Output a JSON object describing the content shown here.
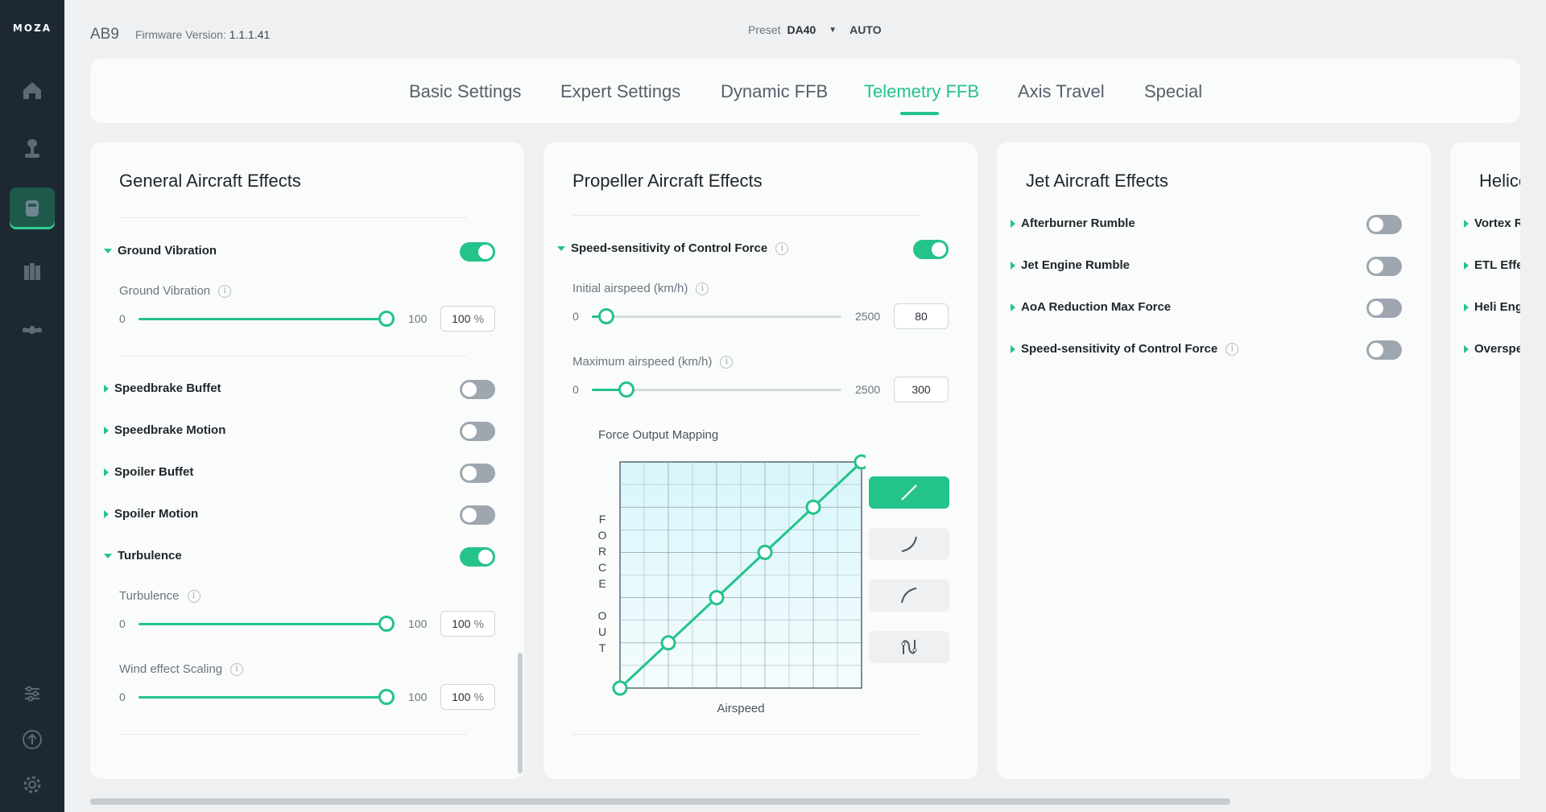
{
  "app": {
    "logo": "MOZA"
  },
  "header": {
    "model": "AB9",
    "firmware_label": "Firmware Version:",
    "firmware_version": "1.1.1.41",
    "preset_label": "Preset",
    "preset_value": "DA40",
    "auto_label": "AUTO"
  },
  "sidebar": {
    "items": [
      {
        "name": "home-icon",
        "active": false
      },
      {
        "name": "joystick-icon",
        "active": false
      },
      {
        "name": "base-device-icon",
        "active": true
      },
      {
        "name": "pedals-icon",
        "active": false
      },
      {
        "name": "drone-icon",
        "active": false
      }
    ],
    "bottom": [
      "sliders-icon",
      "upload-icon",
      "gear-icon"
    ]
  },
  "tabs": [
    {
      "label": "Basic Settings",
      "active": false
    },
    {
      "label": "Expert Settings",
      "active": false
    },
    {
      "label": "Dynamic FFB",
      "active": false
    },
    {
      "label": "Telemetry FFB",
      "active": true
    },
    {
      "label": "Axis Travel",
      "active": false
    },
    {
      "label": "Special",
      "active": false
    }
  ],
  "general": {
    "title": "General Aircraft Effects",
    "ground_vibration": {
      "label": "Ground Vibration",
      "enabled": true
    },
    "ground_vibration_slider": {
      "label": "Ground Vibration",
      "min": "0",
      "max": "100",
      "value": "100",
      "unit": "%"
    },
    "speedbrake_buffet": {
      "label": "Speedbrake Buffet",
      "enabled": false
    },
    "speedbrake_motion": {
      "label": "Speedbrake Motion",
      "enabled": false
    },
    "spoiler_buffet": {
      "label": "Spoiler Buffet",
      "enabled": false
    },
    "spoiler_motion": {
      "label": "Spoiler Motion",
      "enabled": false
    },
    "turbulence": {
      "label": "Turbulence",
      "enabled": true
    },
    "turbulence_slider": {
      "label": "Turbulence",
      "min": "0",
      "max": "100",
      "value": "100",
      "unit": "%"
    },
    "wind_slider": {
      "label": "Wind effect Scaling",
      "min": "0",
      "max": "100",
      "value": "100",
      "unit": "%"
    }
  },
  "propeller": {
    "title": "Propeller Aircraft Effects",
    "speed_sensitivity": {
      "label": "Speed-sensitivity of Control Force",
      "enabled": true
    },
    "initial_airspeed": {
      "label": "Initial airspeed (km/h)",
      "min": "0",
      "max": "2500",
      "value": "80"
    },
    "max_airspeed": {
      "label": "Maximum airspeed (km/h)",
      "min": "0",
      "max": "2500",
      "value": "300"
    },
    "mapping": {
      "title": "Force Output Mapping",
      "y_label": "FORCE OUT",
      "x_label": "Airspeed",
      "points": [
        [
          0,
          0
        ],
        [
          20,
          20
        ],
        [
          40,
          40
        ],
        [
          60,
          60
        ],
        [
          80,
          80
        ],
        [
          100,
          100
        ]
      ]
    },
    "curve_presets": [
      "linear-curve-icon",
      "convex-curve-icon",
      "concave-curve-icon",
      "custom-curve-icon"
    ]
  },
  "jet": {
    "title": "Jet Aircraft Effects",
    "items": [
      {
        "label": "Afterburner Rumble",
        "enabled": false
      },
      {
        "label": "Jet Engine Rumble",
        "enabled": false
      },
      {
        "label": "AoA Reduction Max Force",
        "enabled": false
      },
      {
        "label": "Speed-sensitivity of Control Force",
        "enabled": false
      }
    ]
  },
  "heli": {
    "title": "Helicopter Effects",
    "items": [
      {
        "label": "Vortex Ring State Effect"
      },
      {
        "label": "ETL Effect"
      },
      {
        "label": "Heli Engine Rumble"
      },
      {
        "label": "Overspeed"
      }
    ]
  },
  "colors": {
    "accent": "#24c38a",
    "sidebar": "#1d2833",
    "panel": "#fafbfb",
    "background": "#eef0f2"
  }
}
